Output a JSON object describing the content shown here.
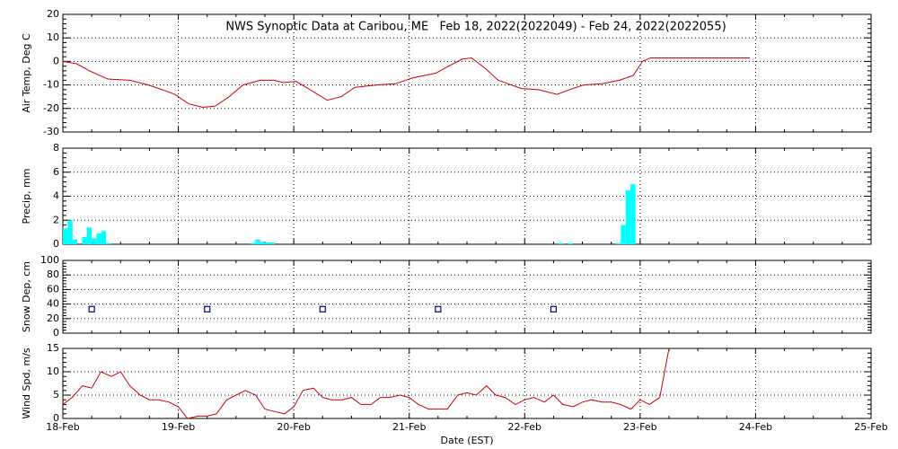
{
  "chart_data": [
    {
      "type": "line",
      "title": "NWS Synoptic Data at Caribou, ME   Feb 18, 2022(2022049) - Feb 24, 2022(2022055)",
      "ylabel": "Air Temp, Deg C",
      "color": "#cc0000",
      "grid": true,
      "x": [
        18.0,
        18.12,
        18.23,
        18.39,
        18.58,
        18.74,
        18.86,
        18.97,
        19.09,
        19.21,
        19.32,
        19.44,
        19.56,
        19.71,
        19.83,
        19.91,
        20.02,
        20.14,
        20.29,
        20.41,
        20.53,
        20.72,
        20.88,
        21.03,
        21.23,
        21.34,
        21.46,
        21.54,
        21.66,
        21.77,
        21.97,
        22.12,
        22.28,
        22.39,
        22.51,
        22.67,
        22.82,
        22.94,
        23.02,
        23.09,
        23.95
      ],
      "values": [
        0,
        -1,
        -4,
        -7.5,
        -8,
        -10,
        -12,
        -14,
        -18,
        -19.5,
        -19,
        -15,
        -10,
        -8,
        -8,
        -9,
        -8.5,
        -12,
        -16.5,
        -15,
        -11,
        -10,
        -9.5,
        -7,
        -5,
        -2,
        1,
        1.5,
        -3,
        -8,
        -11.5,
        -12,
        -14,
        -12,
        -10,
        -9.5,
        -8,
        -6,
        0,
        1.5,
        1.5
      ],
      "xlim": [
        18,
        25
      ],
      "ylim": [
        -30,
        20
      ],
      "yticks": [
        -30,
        -20,
        -10,
        0,
        10,
        20
      ]
    },
    {
      "type": "bar",
      "ylabel": "Precip, mm",
      "color": "#00ffff",
      "grid": true,
      "x": [
        18,
        18.042,
        18.083,
        18.167,
        18.208,
        18.25,
        18.292,
        18.333,
        18.375,
        19.625,
        19.667,
        19.708,
        19.75,
        19.792,
        22.292,
        22.375,
        22.792,
        22.833,
        22.875,
        22.917
      ],
      "values": [
        1.3,
        2.0,
        0.4,
        0.6,
        1.4,
        0.5,
        0.9,
        1.1,
        0.1,
        0.1,
        0.4,
        0.2,
        0.15,
        0.15,
        0.1,
        0.1,
        0.1,
        1.6,
        4.5,
        5.0
      ],
      "xlim": [
        18,
        25
      ],
      "ylim": [
        0,
        8
      ],
      "yticks": [
        0,
        2,
        4,
        6,
        8
      ]
    },
    {
      "type": "scatter",
      "ylabel": "Snow Dep, cm",
      "color": "#000080",
      "grid": true,
      "x": [
        18.25,
        19.25,
        20.25,
        21.25,
        22.25
      ],
      "values": [
        33,
        33,
        33,
        33,
        33
      ],
      "xlim": [
        18,
        25
      ],
      "ylim": [
        0,
        100
      ],
      "yticks": [
        0,
        20,
        40,
        60,
        80,
        100
      ]
    },
    {
      "type": "line",
      "ylabel": "Wind Spd, m/s",
      "xlabel": "Date (EST)",
      "color": "#cc0000",
      "grid": true,
      "x": [
        18,
        18.08,
        18.17,
        18.25,
        18.33,
        18.42,
        18.5,
        18.58,
        18.67,
        18.75,
        18.83,
        18.92,
        19,
        19.08,
        19.17,
        19.25,
        19.33,
        19.42,
        19.5,
        19.58,
        19.67,
        19.75,
        19.83,
        19.92,
        20,
        20.08,
        20.17,
        20.25,
        20.33,
        20.42,
        20.5,
        20.58,
        20.67,
        20.75,
        20.83,
        20.92,
        21,
        21.08,
        21.17,
        21.25,
        21.33,
        21.42,
        21.5,
        21.58,
        21.67,
        21.75,
        21.83,
        21.92,
        22,
        22.08,
        22.17,
        22.25,
        22.33,
        22.42,
        22.5,
        22.58,
        22.67,
        22.75,
        22.83,
        22.92,
        23,
        23.08,
        23.17,
        23.25
      ],
      "values": [
        3,
        4.5,
        7,
        6.5,
        10,
        9,
        10,
        7,
        5,
        4,
        4,
        3.5,
        2.5,
        0,
        0.5,
        0.5,
        1,
        4,
        5,
        6,
        5,
        2,
        1.5,
        1,
        2.5,
        6,
        6.5,
        4.5,
        4,
        4,
        4.5,
        3,
        3,
        4.5,
        4.5,
        5,
        4.5,
        3,
        2,
        2,
        2,
        5,
        5.5,
        5,
        7,
        5,
        4.5,
        3,
        4,
        4.5,
        3.5,
        5,
        3,
        2.5,
        3.5,
        4,
        3.5,
        3.5,
        3,
        2,
        4,
        3,
        4.5,
        15
      ],
      "xlim": [
        18,
        25
      ],
      "ylim": [
        0,
        15
      ],
      "yticks": [
        0,
        5,
        10,
        15
      ],
      "xticks": [
        {
          "value": 18,
          "label": "18-Feb"
        },
        {
          "value": 19,
          "label": "19-Feb"
        },
        {
          "value": 20,
          "label": "20-Feb"
        },
        {
          "value": 21,
          "label": "21-Feb"
        },
        {
          "value": 22,
          "label": "22-Feb"
        },
        {
          "value": 23,
          "label": "23-Feb"
        },
        {
          "value": 24,
          "label": "24-Feb"
        },
        {
          "value": 25,
          "label": "25-Feb"
        }
      ]
    }
  ]
}
